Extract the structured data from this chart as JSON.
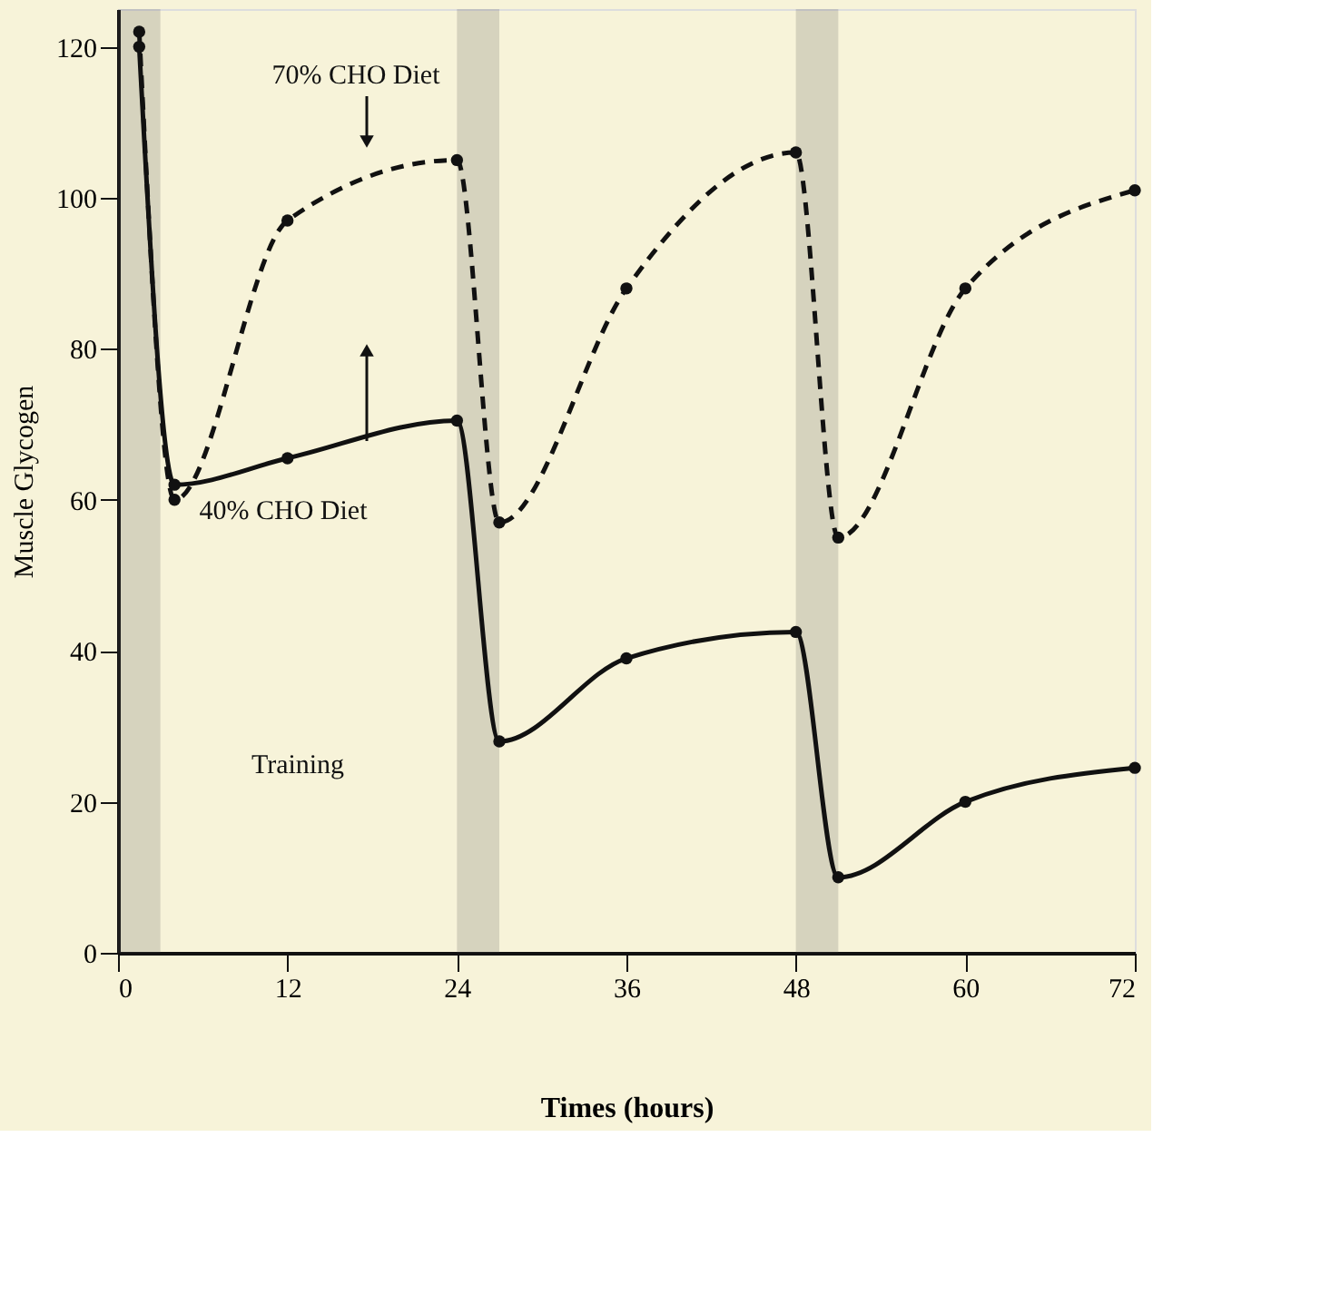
{
  "chart_data": {
    "type": "line",
    "xlabel": "Times (hours)",
    "ylabel": "Muscle Glycogen",
    "xlim": [
      0,
      72
    ],
    "xticks": [
      0,
      12,
      24,
      36,
      48,
      60,
      72
    ],
    "ylim": [
      0,
      125
    ],
    "yticks": [
      0,
      20,
      40,
      60,
      80,
      100,
      120
    ],
    "marker": "circle",
    "series": [
      {
        "name": "70% CHO Diet",
        "color": "#111111",
        "line_style": "dashed",
        "x": [
          1.5,
          4,
          12,
          24,
          27,
          36,
          48,
          51,
          60,
          72
        ],
        "values": [
          122,
          60,
          97,
          105,
          57,
          88,
          106,
          55,
          88,
          101
        ]
      },
      {
        "name": "40% CHO Diet",
        "color": "#111111",
        "line_style": "solid",
        "x": [
          1.5,
          4,
          12,
          24,
          27,
          36,
          48,
          51,
          60,
          72
        ],
        "values": [
          120,
          62,
          65.5,
          70.5,
          28,
          39,
          42.5,
          10,
          20,
          24.5
        ]
      }
    ],
    "bands": [
      {
        "axis": "x",
        "from": 0,
        "to": 3,
        "color": "#555555"
      },
      {
        "axis": "x",
        "from": 24,
        "to": 27,
        "color": "#555555"
      },
      {
        "axis": "x",
        "from": 48,
        "to": 51,
        "color": "#555555"
      }
    ],
    "annotations": [
      "Training"
    ]
  }
}
